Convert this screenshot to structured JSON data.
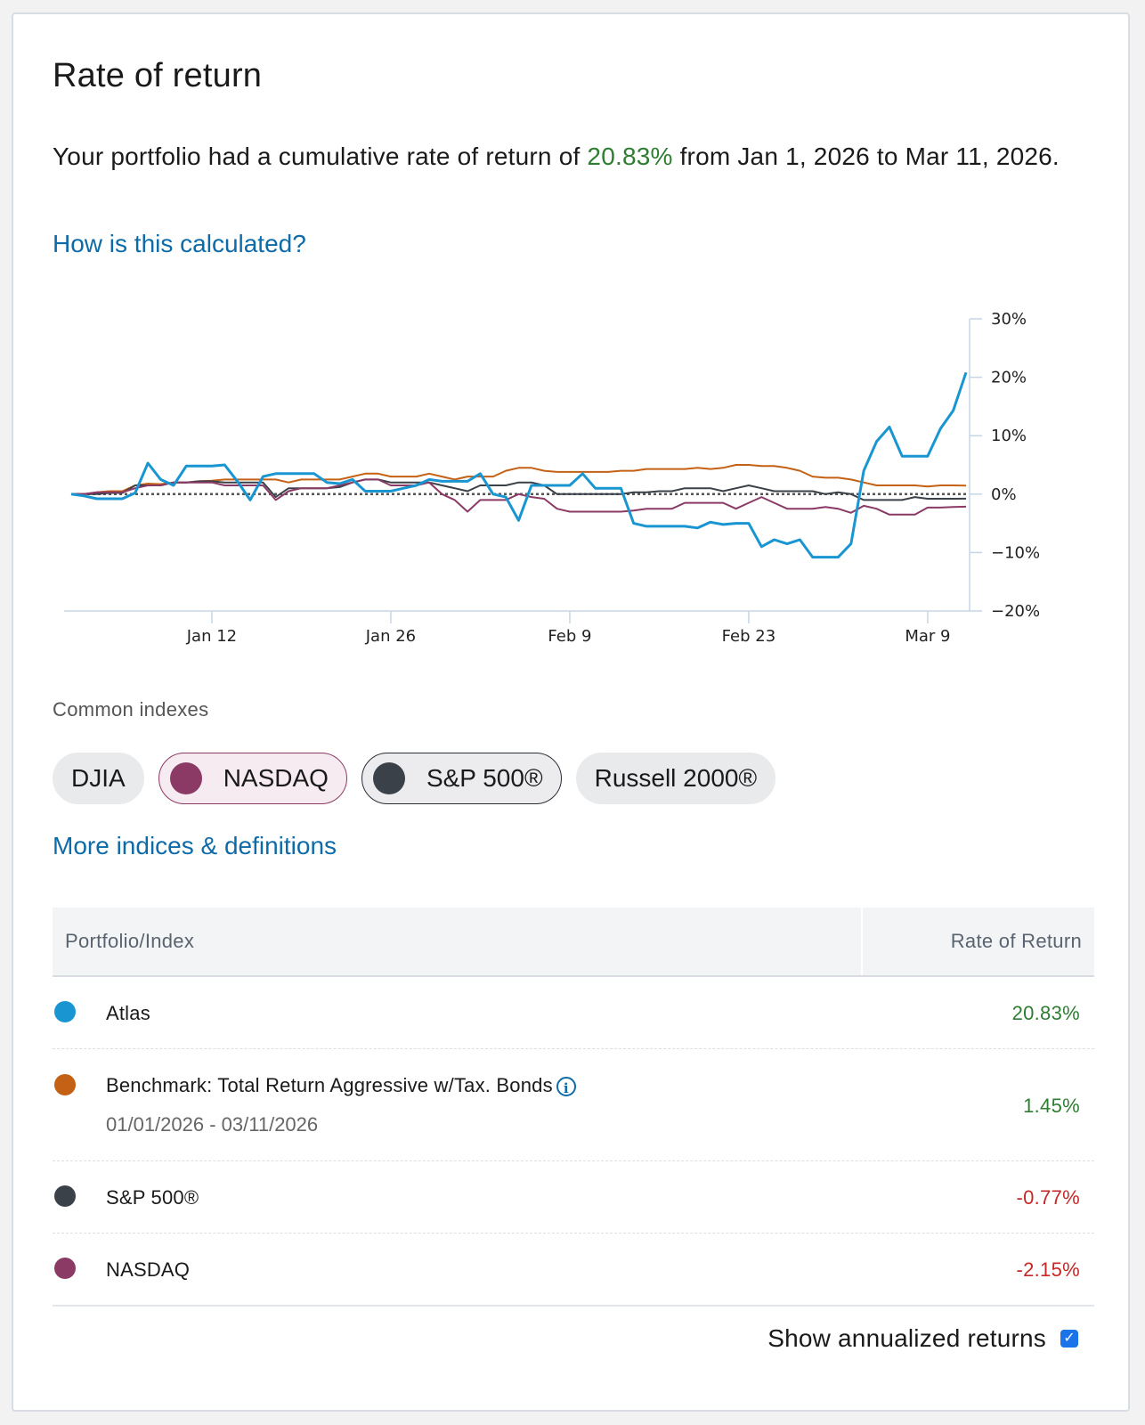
{
  "title": "Rate of return",
  "summary": {
    "prefix": "Your portfolio had a cumulative rate of return of ",
    "value": "20.83%",
    "suffix": " from Jan 1, 2026 to Mar 11, 2026."
  },
  "calc_link": "How is this calculated?",
  "common_label": "Common indexes",
  "chips": [
    {
      "label": "DJIA",
      "selected": false
    },
    {
      "label": "NASDAQ",
      "selected": true,
      "color": "#8a3a65"
    },
    {
      "label": "S&P 500®",
      "selected": true,
      "color": "#3b4148"
    },
    {
      "label": "Russell 2000®",
      "selected": false
    }
  ],
  "more_link": "More indices & definitions",
  "table": {
    "col_name": "Portfolio/Index",
    "col_rate": "Rate of Return",
    "rows": [
      {
        "name": "Atlas",
        "rate": "20.83%",
        "color": "#1996d2"
      },
      {
        "name": "Benchmark: Total Return Aggressive w/Tax. Bonds",
        "sub": "01/01/2026 - 03/11/2026",
        "rate": "1.45%",
        "color": "#c46114"
      },
      {
        "name": "S&P 500®",
        "rate": "-0.77%",
        "color": "#3b4148"
      },
      {
        "name": "NASDAQ",
        "rate": "-2.15%",
        "color": "#8a3a65"
      }
    ]
  },
  "annualized_label": "Show annualized returns",
  "annualized_checked": true,
  "colors": {
    "positive": "#2e7d32",
    "negative": "#c62828",
    "link": "#0e6ba8"
  },
  "chart_data": {
    "type": "line",
    "title": "",
    "xlabel": "",
    "ylabel": "",
    "x_ticks": [
      "Jan 12",
      "Jan 26",
      "Feb 9",
      "Feb 23",
      "Mar 9"
    ],
    "x_tick_days": [
      11,
      25,
      39,
      53,
      67
    ],
    "x_range": [
      0,
      70
    ],
    "y_ticks": [
      "30%",
      "20%",
      "10%",
      "0%",
      "−10%",
      "−20%"
    ],
    "y_tick_values": [
      30,
      20,
      10,
      0,
      -10,
      -20
    ],
    "ylim": [
      -20,
      30
    ],
    "zero_line": true,
    "series": [
      {
        "name": "Benchmark",
        "color": "#c46114",
        "x": [
          0,
          1,
          2,
          3,
          4,
          5,
          6,
          7,
          8,
          9,
          10,
          11,
          12,
          13,
          14,
          15,
          16,
          17,
          18,
          19,
          20,
          21,
          22,
          23,
          24,
          25,
          26,
          27,
          28,
          29,
          30,
          31,
          32,
          33,
          34,
          35,
          36,
          37,
          38,
          39,
          40,
          41,
          42,
          43,
          44,
          45,
          46,
          47,
          48,
          49,
          50,
          51,
          52,
          53,
          54,
          55,
          56,
          57,
          58,
          59,
          60,
          61,
          62,
          63,
          64,
          65,
          66,
          67,
          68,
          69,
          70
        ],
        "y": [
          0,
          0,
          0.3,
          0.5,
          0.5,
          1.5,
          1.8,
          1.7,
          2,
          2,
          2.2,
          2.3,
          2.5,
          2.5,
          2.5,
          2.5,
          2.5,
          2,
          2.5,
          2.5,
          2.5,
          2.5,
          3,
          3.5,
          3.5,
          3,
          3,
          3,
          3.5,
          3,
          2.5,
          3,
          3,
          3,
          4,
          4.5,
          4.5,
          4,
          3.8,
          3.8,
          3.8,
          3.8,
          3.8,
          4,
          4,
          4.3,
          4.3,
          4.3,
          4.3,
          4.5,
          4.3,
          4.5,
          5,
          5,
          4.8,
          4.8,
          4.5,
          4,
          3,
          2.8,
          2.8,
          2.5,
          2,
          1.5,
          1.5,
          1.5,
          1.5,
          1.3,
          1.5,
          1.5,
          1.45
        ]
      },
      {
        "name": "S&P 500®",
        "color": "#3b4148",
        "x": [
          0,
          1,
          2,
          3,
          4,
          5,
          6,
          7,
          8,
          9,
          10,
          11,
          12,
          13,
          14,
          15,
          16,
          17,
          18,
          19,
          20,
          21,
          22,
          23,
          24,
          25,
          26,
          27,
          28,
          29,
          30,
          31,
          32,
          33,
          34,
          35,
          36,
          37,
          38,
          39,
          40,
          41,
          42,
          43,
          44,
          45,
          46,
          47,
          48,
          49,
          50,
          51,
          52,
          53,
          54,
          55,
          56,
          57,
          58,
          59,
          60,
          61,
          62,
          63,
          64,
          65,
          66,
          67,
          68,
          69,
          70
        ],
        "y": [
          0,
          0,
          0,
          0.2,
          0.2,
          1.5,
          1.5,
          1.5,
          2,
          2,
          2.2,
          2.2,
          2,
          2,
          2,
          2,
          -0.5,
          1,
          1,
          1,
          1,
          1.2,
          2,
          2.5,
          2.5,
          2,
          2,
          2,
          2,
          1.5,
          1,
          0.5,
          1.5,
          1.5,
          1.5,
          2,
          2,
          1.5,
          0,
          0,
          0,
          0,
          0,
          0,
          0.3,
          0.3,
          0.5,
          0.5,
          1,
          1,
          1,
          0.5,
          1,
          1.5,
          1,
          0.5,
          0.5,
          0.5,
          0.5,
          0,
          0.3,
          0,
          -1,
          -1,
          -1,
          -1,
          -0.5,
          -0.8,
          -0.8,
          -0.8,
          -0.77
        ]
      },
      {
        "name": "NASDAQ",
        "color": "#8a3a65",
        "x": [
          0,
          1,
          2,
          3,
          4,
          5,
          6,
          7,
          8,
          9,
          10,
          11,
          12,
          13,
          14,
          15,
          16,
          17,
          18,
          19,
          20,
          21,
          22,
          23,
          24,
          25,
          26,
          27,
          28,
          29,
          30,
          31,
          32,
          33,
          34,
          35,
          36,
          37,
          38,
          39,
          40,
          41,
          42,
          43,
          44,
          45,
          46,
          47,
          48,
          49,
          50,
          51,
          52,
          53,
          54,
          55,
          56,
          57,
          58,
          59,
          60,
          61,
          62,
          63,
          64,
          65,
          66,
          67,
          68,
          69,
          70
        ],
        "y": [
          0,
          0,
          0.3,
          0.3,
          0.3,
          1,
          1.5,
          1.5,
          2,
          2,
          2,
          2,
          1.5,
          1.5,
          1.5,
          1.5,
          -1,
          0.5,
          1,
          1,
          1,
          1.5,
          2,
          2.5,
          2.5,
          1.5,
          1.5,
          1.5,
          2,
          0,
          -1,
          -3,
          -1,
          -1,
          -1,
          0,
          -0.5,
          -0.8,
          -2.5,
          -3,
          -3,
          -3,
          -3,
          -3,
          -2.8,
          -2.5,
          -2.5,
          -2.5,
          -1.5,
          -1.5,
          -1.5,
          -1.5,
          -2.5,
          -1.5,
          -0.5,
          -1.5,
          -2.5,
          -2.5,
          -2.5,
          -2.2,
          -2.5,
          -3.2,
          -2,
          -2.5,
          -3.5,
          -3.5,
          -3.5,
          -2.3,
          -2.3,
          -2.2,
          -2.15
        ]
      },
      {
        "name": "Atlas",
        "color": "#1996d2",
        "x": [
          0,
          1,
          2,
          3,
          4,
          5,
          6,
          7,
          8,
          9,
          10,
          11,
          12,
          13,
          14,
          15,
          16,
          17,
          18,
          19,
          20,
          21,
          22,
          23,
          24,
          25,
          26,
          27,
          28,
          29,
          30,
          31,
          32,
          33,
          34,
          35,
          36,
          37,
          38,
          39,
          40,
          41,
          42,
          43,
          44,
          45,
          46,
          47,
          48,
          49,
          50,
          51,
          52,
          53,
          54,
          55,
          56,
          57,
          58,
          59,
          60,
          61,
          62,
          63,
          64,
          65,
          66,
          67,
          68,
          69,
          70
        ],
        "y": [
          0,
          -0.3,
          -0.8,
          -0.8,
          -0.8,
          0.2,
          5.3,
          2.5,
          1.5,
          4.8,
          4.8,
          4.8,
          5,
          2.2,
          -1,
          3,
          3.5,
          3.5,
          3.5,
          3.5,
          2,
          1.8,
          2.5,
          0.5,
          0.5,
          0.5,
          1,
          1.5,
          2.5,
          2.2,
          2.2,
          2.2,
          3.5,
          0,
          -0.5,
          -4.5,
          1.5,
          1.5,
          1.5,
          1.5,
          3.5,
          1,
          1,
          1,
          -5,
          -5.5,
          -5.5,
          -5.5,
          -5.5,
          -5.8,
          -4.8,
          -5.2,
          -5,
          -5,
          -9,
          -7.8,
          -8.5,
          -7.8,
          -10.8,
          -10.8,
          -10.8,
          -8.5,
          4,
          9,
          11.5,
          6.5,
          6.5,
          6.5,
          11.2,
          14.3,
          20.83
        ]
      }
    ]
  }
}
